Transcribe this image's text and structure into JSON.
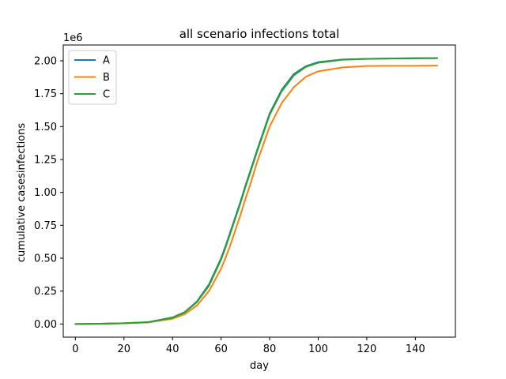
{
  "chart_data": {
    "type": "line",
    "title": "all scenario infections total",
    "xlabel": "day",
    "ylabel": "cumulative casesinfections",
    "y_offset_label": "1e6",
    "xlim": [
      -5,
      156.5
    ],
    "ylim": [
      -0.1,
      2.12
    ],
    "x_ticks": [
      0,
      20,
      40,
      60,
      80,
      100,
      120,
      140
    ],
    "x_tick_labels": [
      "0",
      "20",
      "40",
      "60",
      "80",
      "100",
      "120",
      "140"
    ],
    "y_ticks": [
      0.0,
      0.25,
      0.5,
      0.75,
      1.0,
      1.25,
      1.5,
      1.75,
      2.0
    ],
    "y_tick_labels": [
      "0.00",
      "0.25",
      "0.50",
      "0.75",
      "1.00",
      "1.25",
      "1.50",
      "1.75",
      "2.00"
    ],
    "grid": false,
    "legend_position": "upper-left",
    "x": [
      0,
      10,
      20,
      30,
      40,
      45,
      50,
      55,
      60,
      62,
      64,
      66,
      68,
      70,
      72,
      75,
      80,
      85,
      90,
      95,
      100,
      110,
      120,
      130,
      140,
      149
    ],
    "series": [
      {
        "name": "A",
        "color": "#1f77b4",
        "values": [
          0.0,
          0.002,
          0.006,
          0.014,
          0.05,
          0.09,
          0.17,
          0.3,
          0.5,
          0.6,
          0.71,
          0.82,
          0.93,
          1.05,
          1.16,
          1.33,
          1.6,
          1.78,
          1.9,
          1.96,
          1.99,
          2.01,
          2.015,
          2.018,
          2.02,
          2.02
        ]
      },
      {
        "name": "B",
        "color": "#ff7f0e",
        "values": [
          0.0,
          0.002,
          0.005,
          0.012,
          0.04,
          0.075,
          0.14,
          0.25,
          0.42,
          0.51,
          0.61,
          0.72,
          0.83,
          0.95,
          1.06,
          1.24,
          1.5,
          1.68,
          1.8,
          1.88,
          1.92,
          1.95,
          1.96,
          1.962,
          1.962,
          1.963
        ]
      },
      {
        "name": "C",
        "color": "#2ca02c",
        "values": [
          0.0,
          0.002,
          0.006,
          0.014,
          0.048,
          0.088,
          0.165,
          0.29,
          0.49,
          0.59,
          0.7,
          0.81,
          0.92,
          1.04,
          1.15,
          1.32,
          1.59,
          1.77,
          1.89,
          1.955,
          1.985,
          2.008,
          2.014,
          2.017,
          2.019,
          2.02
        ]
      }
    ]
  }
}
